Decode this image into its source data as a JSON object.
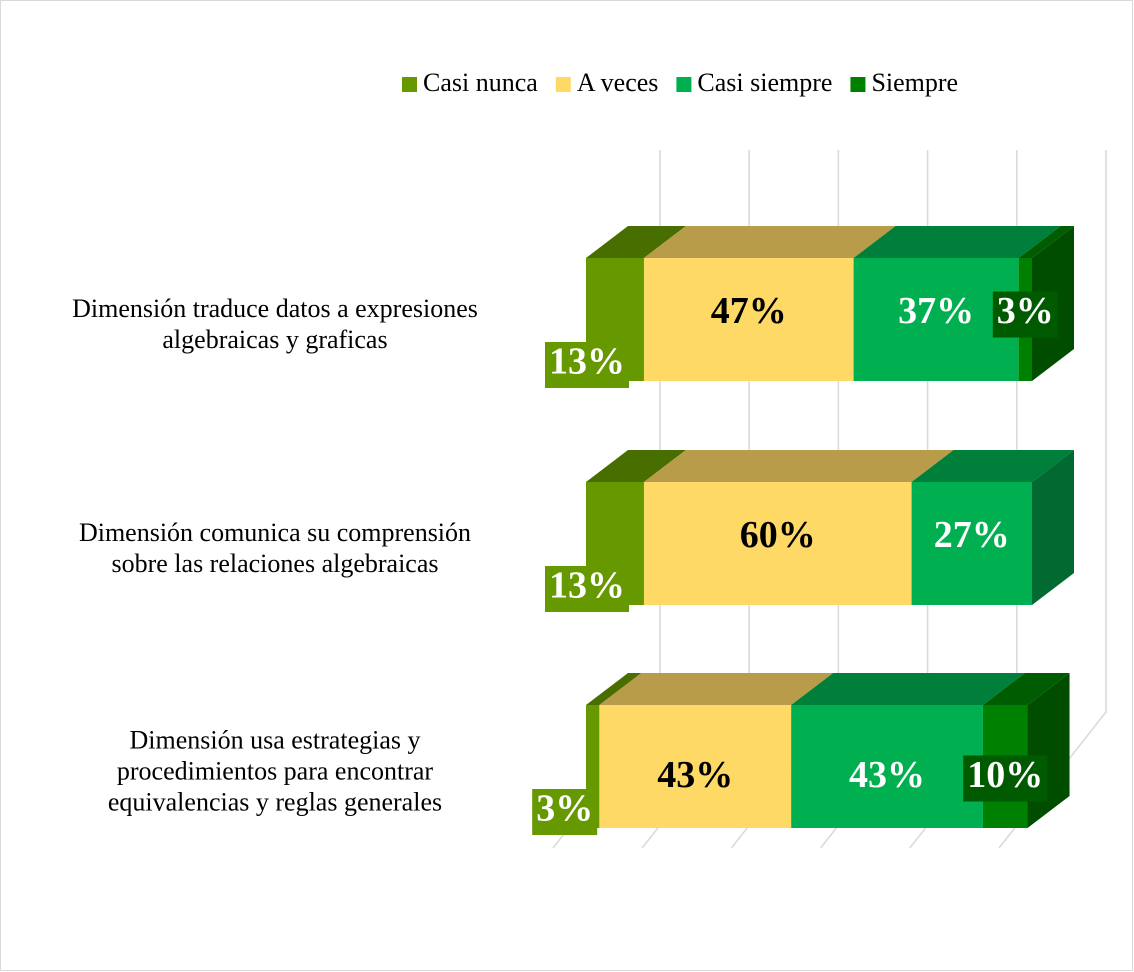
{
  "chart_data": {
    "type": "bar3d_stacked_horizontal",
    "categories": [
      "Dimensión traduce datos a expresiones\nalgebraicas y graficas",
      "Dimensión comunica su comprensión\nsobre las relaciones algebraicas",
      "Dimensión usa estrategias y\nprocedimientos para encontrar\nequivalencias y reglas generales"
    ],
    "series": [
      {
        "name": "Casi nunca",
        "color": "#669900",
        "values": [
          13,
          13,
          3
        ],
        "value_labels": [
          "13%",
          "13%",
          "3%"
        ],
        "label_color": "#ffffff"
      },
      {
        "name": "A veces",
        "color": "#ffd966",
        "values": [
          47,
          60,
          43
        ],
        "value_labels": [
          "47%",
          "60%",
          "43%"
        ],
        "label_color": "#000000"
      },
      {
        "name": "Casi siempre",
        "color": "#00b050",
        "values": [
          37,
          27,
          43
        ],
        "value_labels": [
          "37%",
          "27%",
          "43%"
        ],
        "label_color": "#ffffff"
      },
      {
        "name": "Siempre",
        "color": "#008000",
        "values": [
          3,
          null,
          10
        ],
        "value_labels": [
          "3%",
          null,
          "10%"
        ],
        "label_color": "#ffffff"
      }
    ],
    "xlim": [
      0,
      100
    ],
    "xticks": [
      0,
      20,
      40,
      60,
      80,
      100
    ],
    "grid": true,
    "legend": "top"
  }
}
